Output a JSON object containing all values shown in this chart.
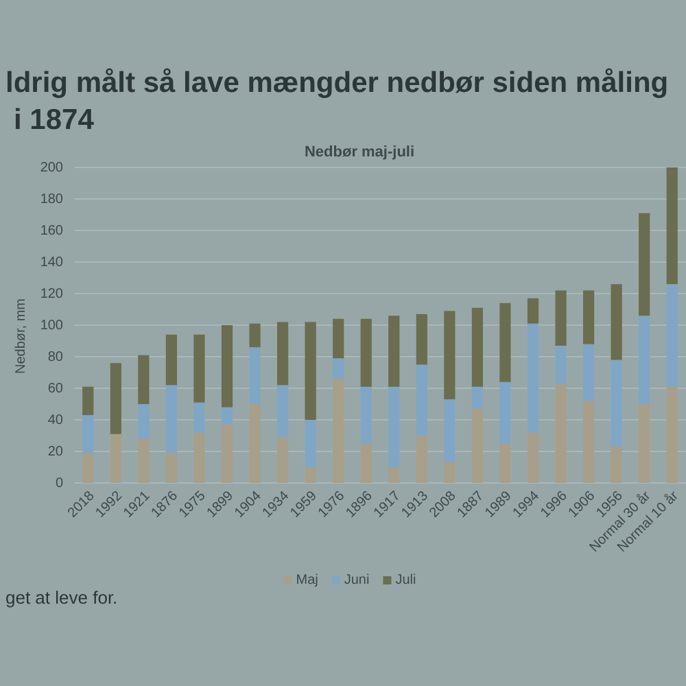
{
  "chart_data": {
    "type": "bar",
    "stacked": true,
    "title": "ldrig målt så lave mængder nedbør siden måling i 1874",
    "subtitle": "Nedbør maj-juli",
    "ylabel": "Nedbør, mm",
    "annotations": [
      "get at leve for."
    ],
    "categories": [
      "2018",
      "1992",
      "1921",
      "1876",
      "1975",
      "1899",
      "1904",
      "1934",
      "1959",
      "1976",
      "1896",
      "1917",
      "1913",
      "2008",
      "1887",
      "1989",
      "1994",
      "1996",
      "1906",
      "1956",
      "Normal 30 år",
      "Normal 10 år"
    ],
    "series": [
      {
        "name": "Maj",
        "color": "#a89f8a",
        "values": [
          19,
          31,
          28,
          19,
          32,
          37,
          50,
          29,
          10,
          66,
          25,
          10,
          30,
          13,
          47,
          25,
          32,
          63,
          52,
          23,
          50,
          61
        ]
      },
      {
        "name": "Juni",
        "color": "#80a6c6",
        "values": [
          24,
          null,
          22,
          43,
          19,
          11,
          36,
          33,
          30,
          13,
          36,
          51,
          45,
          40,
          14,
          39,
          69,
          24,
          36,
          55,
          56,
          65
        ]
      },
      {
        "name": "Juli",
        "color": "#6a6d4f",
        "values": [
          18,
          45,
          31,
          32,
          43,
          52,
          15,
          40,
          62,
          25,
          43,
          45,
          32,
          56,
          50,
          50,
          16,
          35,
          34,
          48,
          65,
          74
        ]
      }
    ],
    "ylim": [
      0,
      200
    ],
    "yticks": [
      0,
      20,
      40,
      60,
      80,
      100,
      120,
      140,
      160,
      180,
      200
    ],
    "grid": "y",
    "legend": "bottom"
  }
}
